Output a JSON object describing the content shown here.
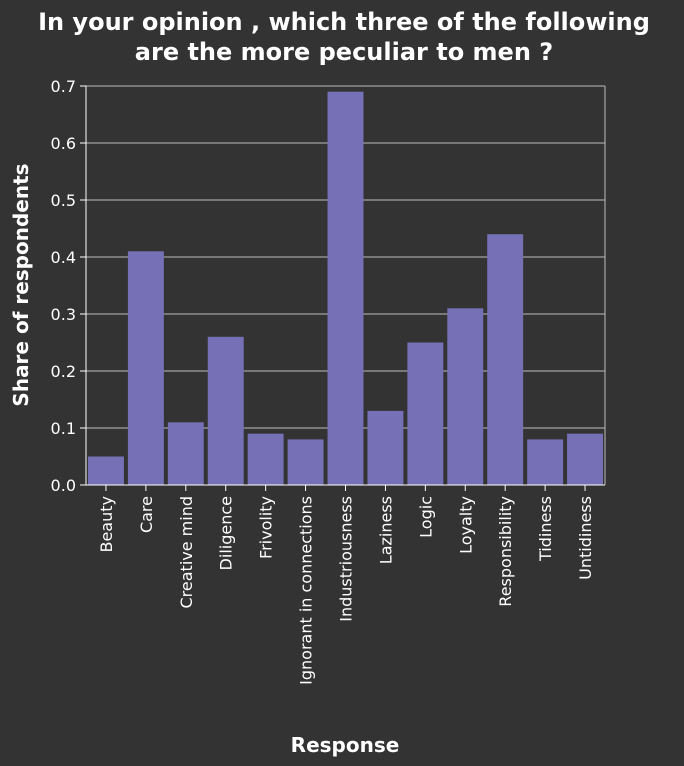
{
  "chart_data": {
    "type": "bar",
    "title": "In your opinion , which three of the following are the more peculiar to men ?",
    "title_lines": [
      "In your opinion , which three of the following",
      "are the more peculiar to men ?"
    ],
    "xlabel": "Response",
    "ylabel": "Share of respondents",
    "categories": [
      "Beauty",
      "Care",
      "Creative mind",
      "Diligence",
      "Frivolity",
      "Ignorant in connections",
      "Industriousness",
      "Laziness",
      "Logic",
      "Loyalty",
      "Responsibility",
      "Tidiness",
      "Untidiness"
    ],
    "values": [
      0.05,
      0.41,
      0.11,
      0.26,
      0.09,
      0.08,
      0.69,
      0.13,
      0.25,
      0.31,
      0.44,
      0.08,
      0.09
    ],
    "yticks": [
      "0.0",
      "0.1",
      "0.2",
      "0.3",
      "0.4",
      "0.5",
      "0.6",
      "0.7"
    ],
    "ylim": [
      0,
      0.7
    ],
    "grid": true,
    "colors": {
      "bar": "#7670b7",
      "background": "#333333",
      "text": "#ffffff",
      "grid": "#bdbdbd"
    }
  }
}
